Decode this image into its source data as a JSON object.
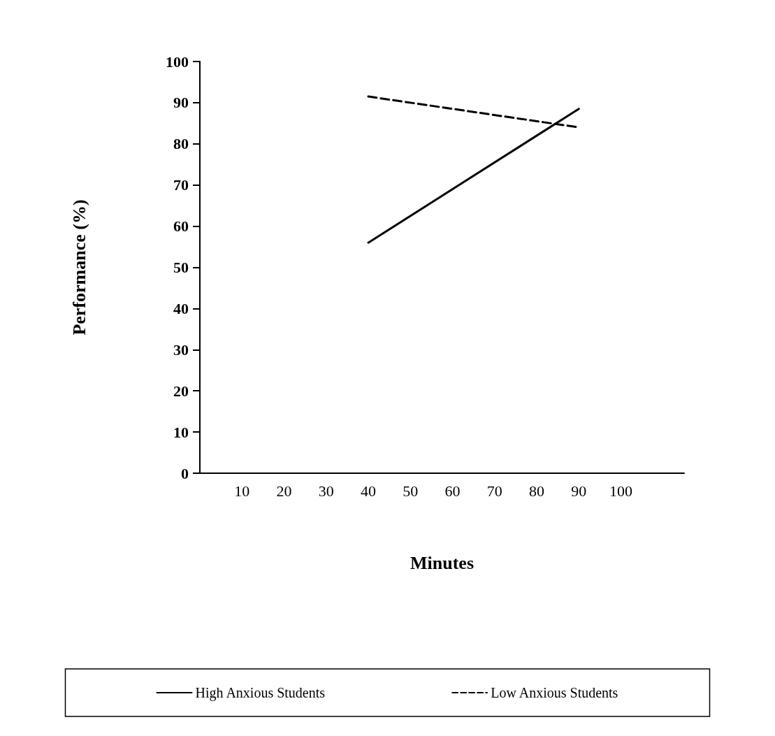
{
  "chart_data": {
    "type": "line",
    "xlabel": "Minutes",
    "ylabel": "Performance (%)",
    "xlim": [
      0,
      115
    ],
    "xticks": [
      10,
      20,
      30,
      40,
      50,
      60,
      70,
      80,
      90,
      100
    ],
    "ylim": [
      0,
      100
    ],
    "yticks": [
      0,
      10,
      20,
      30,
      40,
      50,
      60,
      70,
      80,
      90,
      100
    ],
    "grid": false,
    "legend": "bottom",
    "marker": "none",
    "x": [
      40,
      90
    ],
    "series": [
      {
        "name": "High Anxious Students",
        "color": "#000000",
        "values": [
          56,
          88.5
        ],
        "line_style": "solid"
      },
      {
        "name": "Low Anxious Students",
        "color": "#000000",
        "values": [
          91.5,
          84
        ],
        "line_style": "dashed"
      }
    ]
  }
}
